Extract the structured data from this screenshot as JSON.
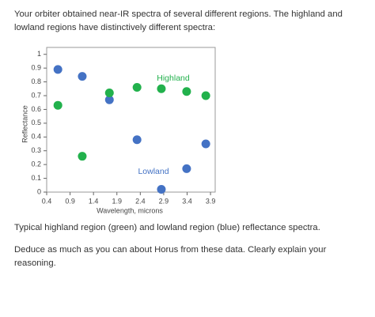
{
  "intro": "Your orbiter obtained near-IR spectra of several different regions. The highland and lowland regions have distinctively different spectra:",
  "chart_data": {
    "type": "scatter",
    "x_label": "Wavelength, microns",
    "y_label": "Reflectance",
    "xlim": [
      0.4,
      4.0
    ],
    "xticks": [
      0.4,
      0.9,
      1.4,
      1.9,
      2.4,
      2.9,
      3.4,
      3.9
    ],
    "ylim": [
      0,
      1.05
    ],
    "yticks": [
      0,
      0.1,
      0.2,
      0.3,
      0.4,
      0.5,
      0.6,
      0.7,
      0.8,
      0.9,
      1
    ],
    "annotations": [
      "Highland",
      "Lowland"
    ],
    "series": [
      {
        "name": "Lowland",
        "color": "#4472c4",
        "x": [
          0.64,
          1.16,
          1.74,
          2.33,
          2.85,
          3.39,
          3.8
        ],
        "values": [
          0.89,
          0.84,
          0.67,
          0.38,
          0.02,
          0.17,
          0.35
        ]
      },
      {
        "name": "Highland",
        "color": "#22b14c",
        "x": [
          0.64,
          1.16,
          1.74,
          2.33,
          2.85,
          3.39,
          3.8
        ],
        "values": [
          0.63,
          0.26,
          0.72,
          0.76,
          0.75,
          0.73,
          0.7
        ]
      }
    ]
  },
  "caption": "Typical highland region (green) and lowland region (blue) reflectance spectra.",
  "question": "Deduce as much as you can about Horus from these data. Clearly explain your reasoning."
}
